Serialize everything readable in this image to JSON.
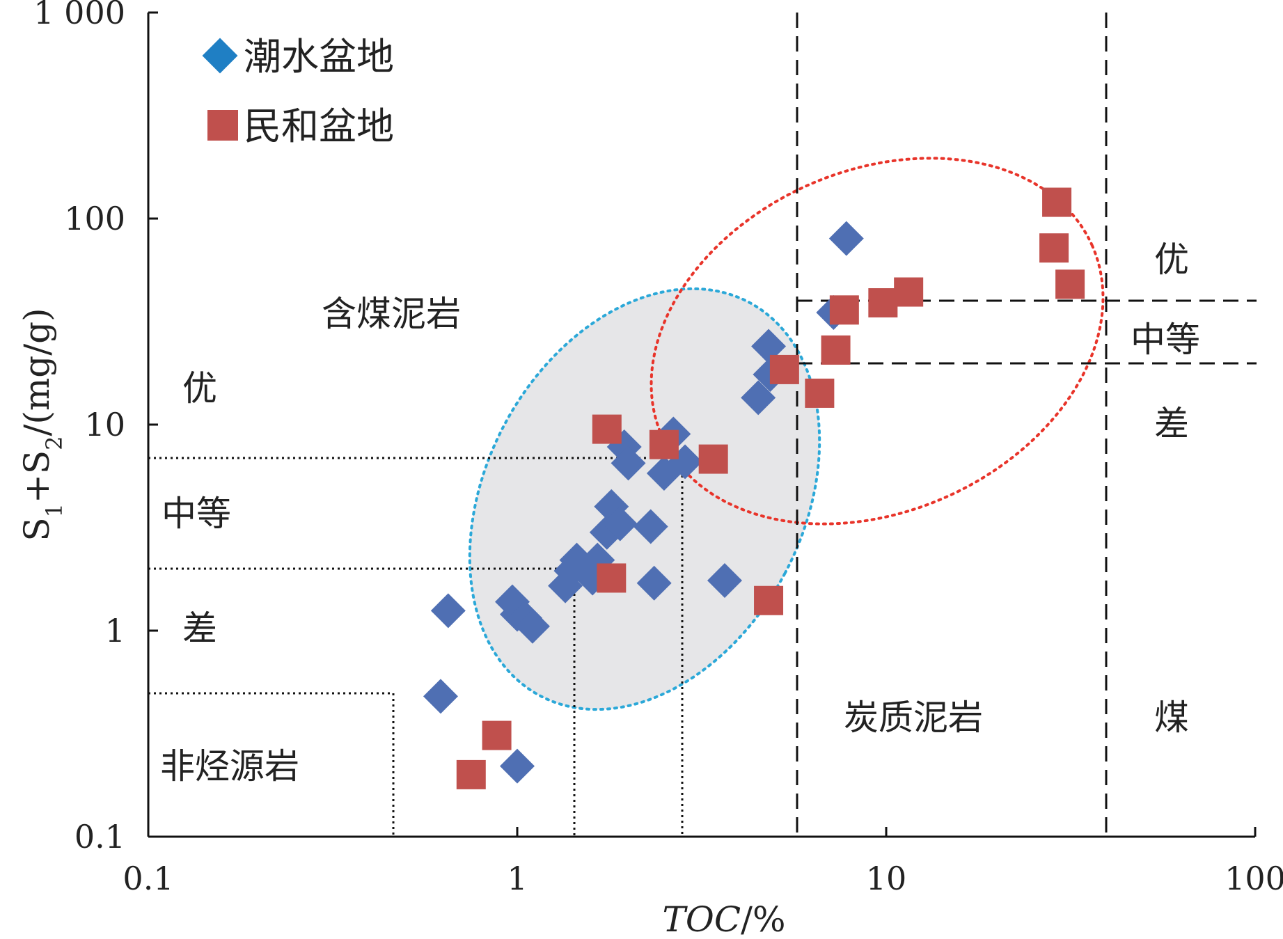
{
  "chart_data": {
    "type": "scatter",
    "x_scale": "log",
    "y_scale": "log",
    "xlim": [
      0.1,
      100
    ],
    "ylim": [
      0.1,
      1000
    ],
    "x_ticks": [
      "0.1",
      "1",
      "10",
      "100"
    ],
    "y_ticks": [
      "0.1",
      "1",
      "10",
      "100",
      "1 000"
    ],
    "xlabel": "TOC/%",
    "ylabel": "S1+S2/(mg/g)",
    "grid": false,
    "legend_position": "top-left",
    "series": [
      {
        "name": "潮水盆地",
        "marker": "diamond",
        "color": "#4f6fb3",
        "points": [
          [
            0.62,
            0.48
          ],
          [
            0.65,
            1.25
          ],
          [
            0.97,
            1.38
          ],
          [
            1.0,
            1.2
          ],
          [
            1.05,
            1.15
          ],
          [
            1.1,
            1.05
          ],
          [
            1.0,
            0.22
          ],
          [
            1.35,
            1.65
          ],
          [
            1.4,
            1.95
          ],
          [
            1.45,
            2.2
          ],
          [
            1.6,
            1.8
          ],
          [
            1.65,
            2.2
          ],
          [
            1.75,
            3.0
          ],
          [
            1.8,
            4.0
          ],
          [
            1.9,
            3.3
          ],
          [
            1.95,
            7.8
          ],
          [
            2.0,
            6.5
          ],
          [
            2.3,
            3.2
          ],
          [
            2.35,
            1.7
          ],
          [
            2.5,
            5.8
          ],
          [
            2.65,
            9.0
          ],
          [
            2.85,
            6.6
          ],
          [
            3.65,
            1.75
          ],
          [
            4.5,
            13.5
          ],
          [
            4.8,
            24.0
          ],
          [
            4.85,
            17.5
          ],
          [
            7.2,
            35.0
          ],
          [
            7.8,
            80.0
          ]
        ]
      },
      {
        "name": "民和盆地",
        "marker": "square",
        "color": "#c0504d",
        "points": [
          [
            0.75,
            0.2
          ],
          [
            0.88,
            0.31
          ],
          [
            1.75,
            9.5
          ],
          [
            1.8,
            1.8
          ],
          [
            2.5,
            8.0
          ],
          [
            3.4,
            6.8
          ],
          [
            4.8,
            1.4
          ],
          [
            5.3,
            18.5
          ],
          [
            6.6,
            14.2
          ],
          [
            7.3,
            23.0
          ],
          [
            7.7,
            36.0
          ],
          [
            9.8,
            39.0
          ],
          [
            11.5,
            44.0
          ],
          [
            28.5,
            72.0
          ],
          [
            29.0,
            120.0
          ],
          [
            31.5,
            48.0
          ]
        ]
      }
    ],
    "zone_labels": [
      "优",
      "中等",
      "差",
      "非烃源岩",
      "含煤泥岩",
      "炭质泥岩",
      "煤"
    ],
    "grade_labels_right": [
      "优",
      "中等",
      "差"
    ]
  },
  "colors": {
    "diamond": "#4f6fb3",
    "square": "#c0504d",
    "blue_ellipse": "#2ba8d8",
    "red_ellipse": "#e8342a",
    "ellipse_fill": "#e6e6e8"
  }
}
